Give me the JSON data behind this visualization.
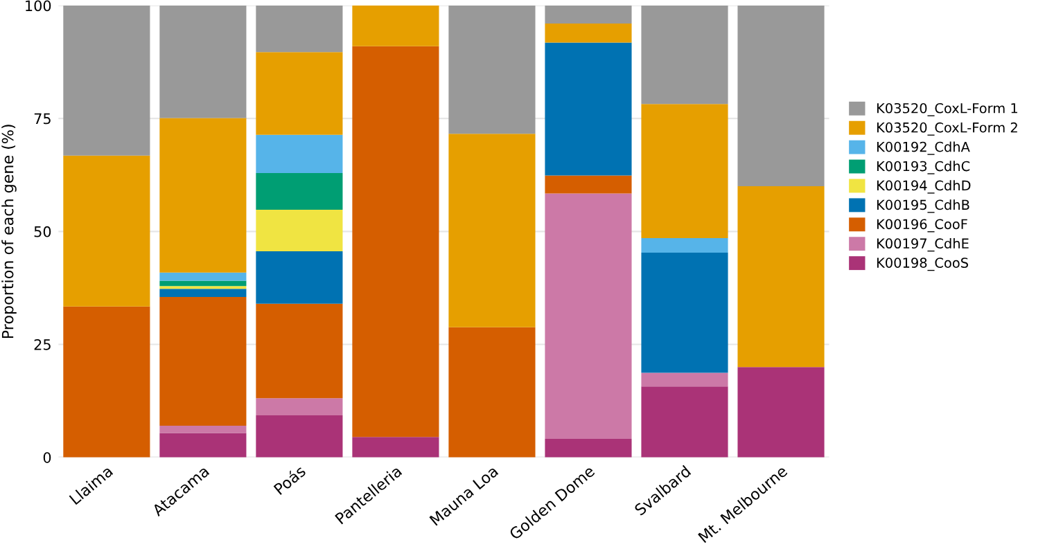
{
  "chart_data": {
    "type": "bar",
    "stacked": true,
    "ylabel": "Proportion of each gene (%)",
    "categories": [
      "Llaima",
      "Atacama",
      "Poás",
      "Pantelleria",
      "Mauna Loa",
      "Golden Dome",
      "Svalbard",
      "Mt. Melbourne"
    ],
    "series": [
      {
        "name": "K00198_CooS",
        "color": "#aa3377",
        "values": [
          0,
          5.4,
          9.3,
          4.5,
          0,
          4.1,
          15.7,
          20.0
        ]
      },
      {
        "name": "K00197_CdhE",
        "color": "#cc79a7",
        "values": [
          0,
          1.6,
          3.8,
          0,
          0,
          54.3,
          3.0,
          0
        ]
      },
      {
        "name": "K00196_CooF",
        "color": "#d55e00",
        "values": [
          33.4,
          28.5,
          20.9,
          86.5,
          28.8,
          4.0,
          0,
          0
        ]
      },
      {
        "name": "K00195_CdhB",
        "color": "#0072b2",
        "values": [
          0,
          1.8,
          11.6,
          0,
          0,
          29.4,
          26.6,
          0
        ]
      },
      {
        "name": "K00194_CdhD",
        "color": "#f0e442",
        "values": [
          0,
          0.6,
          9.2,
          0,
          0,
          0,
          0,
          0
        ]
      },
      {
        "name": "K00193_CdhC",
        "color": "#009e73",
        "values": [
          0,
          1.2,
          8.1,
          0,
          0,
          0,
          0,
          0
        ]
      },
      {
        "name": "K00192_CdhA",
        "color": "#56b4e9",
        "values": [
          0,
          1.8,
          8.5,
          0,
          0,
          0,
          3.2,
          0
        ]
      },
      {
        "name": "K03520_CoxL-Form 2",
        "color": "#e69f00",
        "values": [
          33.4,
          34.2,
          18.3,
          9.0,
          42.8,
          4.2,
          29.7,
          40.0
        ]
      },
      {
        "name": "K03520_CoxL-Form 1",
        "color": "#999999",
        "values": [
          33.2,
          24.9,
          10.3,
          0,
          28.4,
          4.0,
          21.8,
          40.0
        ]
      }
    ],
    "ylim": [
      0,
      100
    ],
    "yticks": [
      0,
      25,
      50,
      75,
      100
    ],
    "grid": "y",
    "legend": "right"
  }
}
